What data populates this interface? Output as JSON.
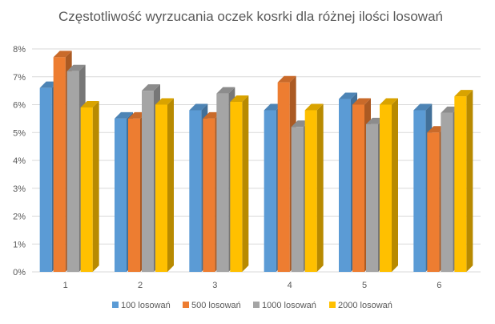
{
  "chart_data": {
    "type": "bar",
    "title": "Częstotliwość wyrzucania oczek kosrki dla różnej ilości losowań",
    "xlabel": "",
    "ylabel": "",
    "categories": [
      "1",
      "2",
      "3",
      "4",
      "5",
      "6"
    ],
    "ylim": [
      0,
      8
    ],
    "yticks": [
      "0%",
      "1%",
      "2%",
      "3%",
      "4%",
      "5%",
      "6%",
      "7%",
      "8%"
    ],
    "grid": true,
    "legend": "bottom",
    "style": "3d-clustered-column",
    "series": [
      {
        "name": "100 losowań",
        "color": "#5B9BD5",
        "values": [
          6.6,
          5.5,
          5.8,
          5.8,
          6.2,
          5.8
        ]
      },
      {
        "name": "500 losowań",
        "color": "#ED7D31",
        "values": [
          7.7,
          5.5,
          5.5,
          6.8,
          6.0,
          5.0
        ]
      },
      {
        "name": "1000 losowań",
        "color": "#A5A5A5",
        "values": [
          7.2,
          6.5,
          6.4,
          5.2,
          5.3,
          5.7
        ]
      },
      {
        "name": "2000 losowań",
        "color": "#FFC000",
        "values": [
          5.9,
          6.0,
          6.1,
          5.8,
          6.0,
          6.3
        ]
      }
    ]
  }
}
